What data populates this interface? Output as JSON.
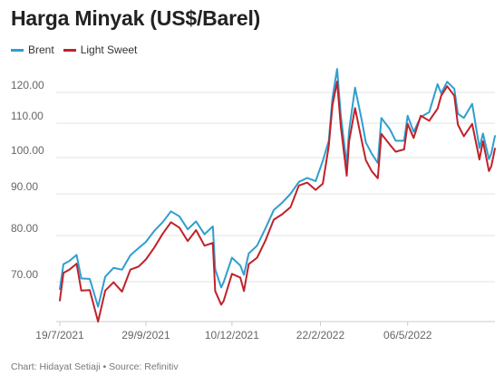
{
  "chart_data": {
    "type": "line",
    "title": "Harga Minyak (US$/Barel)",
    "xlabel": "",
    "ylabel": "",
    "x_tick_labels": [
      "19/7/2021",
      "29/9/2021",
      "10/12/2021",
      "22/2/2022",
      "06/5/2022"
    ],
    "x_tick_dates": [
      "2021-07-19",
      "2021-09-29",
      "2021-12-10",
      "2022-02-22",
      "2022-05-06"
    ],
    "x_range": [
      "2021-07-19",
      "2022-07-18"
    ],
    "y_ticks": [
      70,
      80,
      90,
      100,
      110,
      120
    ],
    "y_tick_labels": [
      "70.00",
      "80.00",
      "90.00",
      "100.00",
      "110.00",
      "120.00"
    ],
    "ylim": [
      64,
      126
    ],
    "grid": "horizontal",
    "legend_position": "top-left",
    "series": [
      {
        "name": "Brent",
        "color": "#2e9fcf",
        "points": [
          [
            "2021-07-19",
            68.6
          ],
          [
            "2021-07-22",
            73.8
          ],
          [
            "2021-07-27",
            74.5
          ],
          [
            "2021-08-02",
            75.8
          ],
          [
            "2021-08-06",
            70.7
          ],
          [
            "2021-08-13",
            70.6
          ],
          [
            "2021-08-20",
            65.2
          ],
          [
            "2021-08-26",
            71.1
          ],
          [
            "2021-09-02",
            73.0
          ],
          [
            "2021-09-09",
            72.6
          ],
          [
            "2021-09-16",
            75.7
          ],
          [
            "2021-09-23",
            77.3
          ],
          [
            "2021-09-29",
            78.6
          ],
          [
            "2021-10-06",
            81.1
          ],
          [
            "2021-10-13",
            83.2
          ],
          [
            "2021-10-20",
            85.8
          ],
          [
            "2021-10-27",
            84.6
          ],
          [
            "2021-11-03",
            81.5
          ],
          [
            "2021-11-10",
            83.4
          ],
          [
            "2021-11-17",
            80.3
          ],
          [
            "2021-11-24",
            82.2
          ],
          [
            "2021-11-26",
            72.7
          ],
          [
            "2021-12-01",
            68.9
          ],
          [
            "2021-12-03",
            69.9
          ],
          [
            "2021-12-10",
            75.2
          ],
          [
            "2021-12-17",
            73.5
          ],
          [
            "2021-12-20",
            71.5
          ],
          [
            "2021-12-24",
            76.1
          ],
          [
            "2021-12-31",
            77.8
          ],
          [
            "2022-01-07",
            81.7
          ],
          [
            "2022-01-14",
            86.1
          ],
          [
            "2022-01-21",
            87.9
          ],
          [
            "2022-01-28",
            90.0
          ],
          [
            "2022-02-04",
            93.3
          ],
          [
            "2022-02-11",
            94.4
          ],
          [
            "2022-02-18",
            93.5
          ],
          [
            "2022-02-24",
            99.1
          ],
          [
            "2022-03-01",
            104.9
          ],
          [
            "2022-03-04",
            118.1
          ],
          [
            "2022-03-08",
            127.98
          ],
          [
            "2022-03-11",
            112.7
          ],
          [
            "2022-03-16",
            98.0
          ],
          [
            "2022-03-18",
            107.9
          ],
          [
            "2022-03-23",
            121.6
          ],
          [
            "2022-03-29",
            110.2
          ],
          [
            "2022-04-01",
            104.4
          ],
          [
            "2022-04-06",
            101.1
          ],
          [
            "2022-04-11",
            98.5
          ],
          [
            "2022-04-14",
            111.7
          ],
          [
            "2022-04-21",
            108.3
          ],
          [
            "2022-04-26",
            104.9
          ],
          [
            "2022-05-03",
            104.9
          ],
          [
            "2022-05-06",
            112.4
          ],
          [
            "2022-05-11",
            107.5
          ],
          [
            "2022-05-17",
            112.0
          ],
          [
            "2022-05-24",
            113.6
          ],
          [
            "2022-05-31",
            122.8
          ],
          [
            "2022-06-03",
            119.7
          ],
          [
            "2022-06-08",
            123.6
          ],
          [
            "2022-06-14",
            121.2
          ],
          [
            "2022-06-17",
            113.1
          ],
          [
            "2022-06-22",
            111.7
          ],
          [
            "2022-06-29",
            116.3
          ],
          [
            "2022-07-05",
            102.8
          ],
          [
            "2022-07-08",
            107.0
          ],
          [
            "2022-07-13",
            99.6
          ],
          [
            "2022-07-15",
            101.2
          ],
          [
            "2022-07-18",
            106.3
          ]
        ]
      },
      {
        "name": "Light Sweet",
        "color": "#c0212b",
        "points": [
          [
            "2021-07-19",
            66.4
          ],
          [
            "2021-07-22",
            71.9
          ],
          [
            "2021-07-27",
            72.6
          ],
          [
            "2021-08-02",
            73.9
          ],
          [
            "2021-08-06",
            68.3
          ],
          [
            "2021-08-13",
            68.4
          ],
          [
            "2021-08-20",
            62.3
          ],
          [
            "2021-08-26",
            68.3
          ],
          [
            "2021-09-02",
            69.9
          ],
          [
            "2021-09-09",
            68.1
          ],
          [
            "2021-09-16",
            72.6
          ],
          [
            "2021-09-23",
            73.3
          ],
          [
            "2021-09-29",
            74.8
          ],
          [
            "2021-10-06",
            77.4
          ],
          [
            "2021-10-13",
            80.4
          ],
          [
            "2021-10-20",
            83.2
          ],
          [
            "2021-10-27",
            81.9
          ],
          [
            "2021-11-03",
            78.8
          ],
          [
            "2021-11-10",
            81.3
          ],
          [
            "2021-11-17",
            77.8
          ],
          [
            "2021-11-24",
            78.4
          ],
          [
            "2021-11-26",
            68.2
          ],
          [
            "2021-12-01",
            65.6
          ],
          [
            "2021-12-03",
            66.3
          ],
          [
            "2021-12-10",
            71.7
          ],
          [
            "2021-12-17",
            70.9
          ],
          [
            "2021-12-20",
            68.2
          ],
          [
            "2021-12-24",
            73.8
          ],
          [
            "2021-12-31",
            75.2
          ],
          [
            "2022-01-07",
            78.9
          ],
          [
            "2022-01-14",
            83.8
          ],
          [
            "2022-01-21",
            85.1
          ],
          [
            "2022-01-28",
            86.8
          ],
          [
            "2022-02-04",
            92.3
          ],
          [
            "2022-02-11",
            93.1
          ],
          [
            "2022-02-18",
            91.1
          ],
          [
            "2022-02-24",
            92.8
          ],
          [
            "2022-03-01",
            103.4
          ],
          [
            "2022-03-04",
            115.7
          ],
          [
            "2022-03-08",
            123.7
          ],
          [
            "2022-03-11",
            109.3
          ],
          [
            "2022-03-16",
            95.0
          ],
          [
            "2022-03-18",
            104.7
          ],
          [
            "2022-03-23",
            114.9
          ],
          [
            "2022-03-29",
            104.2
          ],
          [
            "2022-04-01",
            99.3
          ],
          [
            "2022-04-06",
            96.2
          ],
          [
            "2022-04-11",
            94.3
          ],
          [
            "2022-04-14",
            106.9
          ],
          [
            "2022-04-21",
            103.8
          ],
          [
            "2022-04-26",
            101.7
          ],
          [
            "2022-05-03",
            102.4
          ],
          [
            "2022-05-06",
            109.8
          ],
          [
            "2022-05-11",
            105.7
          ],
          [
            "2022-05-17",
            112.4
          ],
          [
            "2022-05-24",
            110.8
          ],
          [
            "2022-05-31",
            114.7
          ],
          [
            "2022-06-03",
            118.9
          ],
          [
            "2022-06-08",
            122.1
          ],
          [
            "2022-06-14",
            118.9
          ],
          [
            "2022-06-17",
            109.6
          ],
          [
            "2022-06-22",
            106.2
          ],
          [
            "2022-06-29",
            109.8
          ],
          [
            "2022-07-05",
            99.5
          ],
          [
            "2022-07-08",
            104.8
          ],
          [
            "2022-07-13",
            96.3
          ],
          [
            "2022-07-15",
            97.6
          ],
          [
            "2022-07-18",
            102.6
          ]
        ]
      }
    ]
  },
  "footer": {
    "credit": "Chart: Hidayat Setiaji • Source: Refinitiv"
  }
}
